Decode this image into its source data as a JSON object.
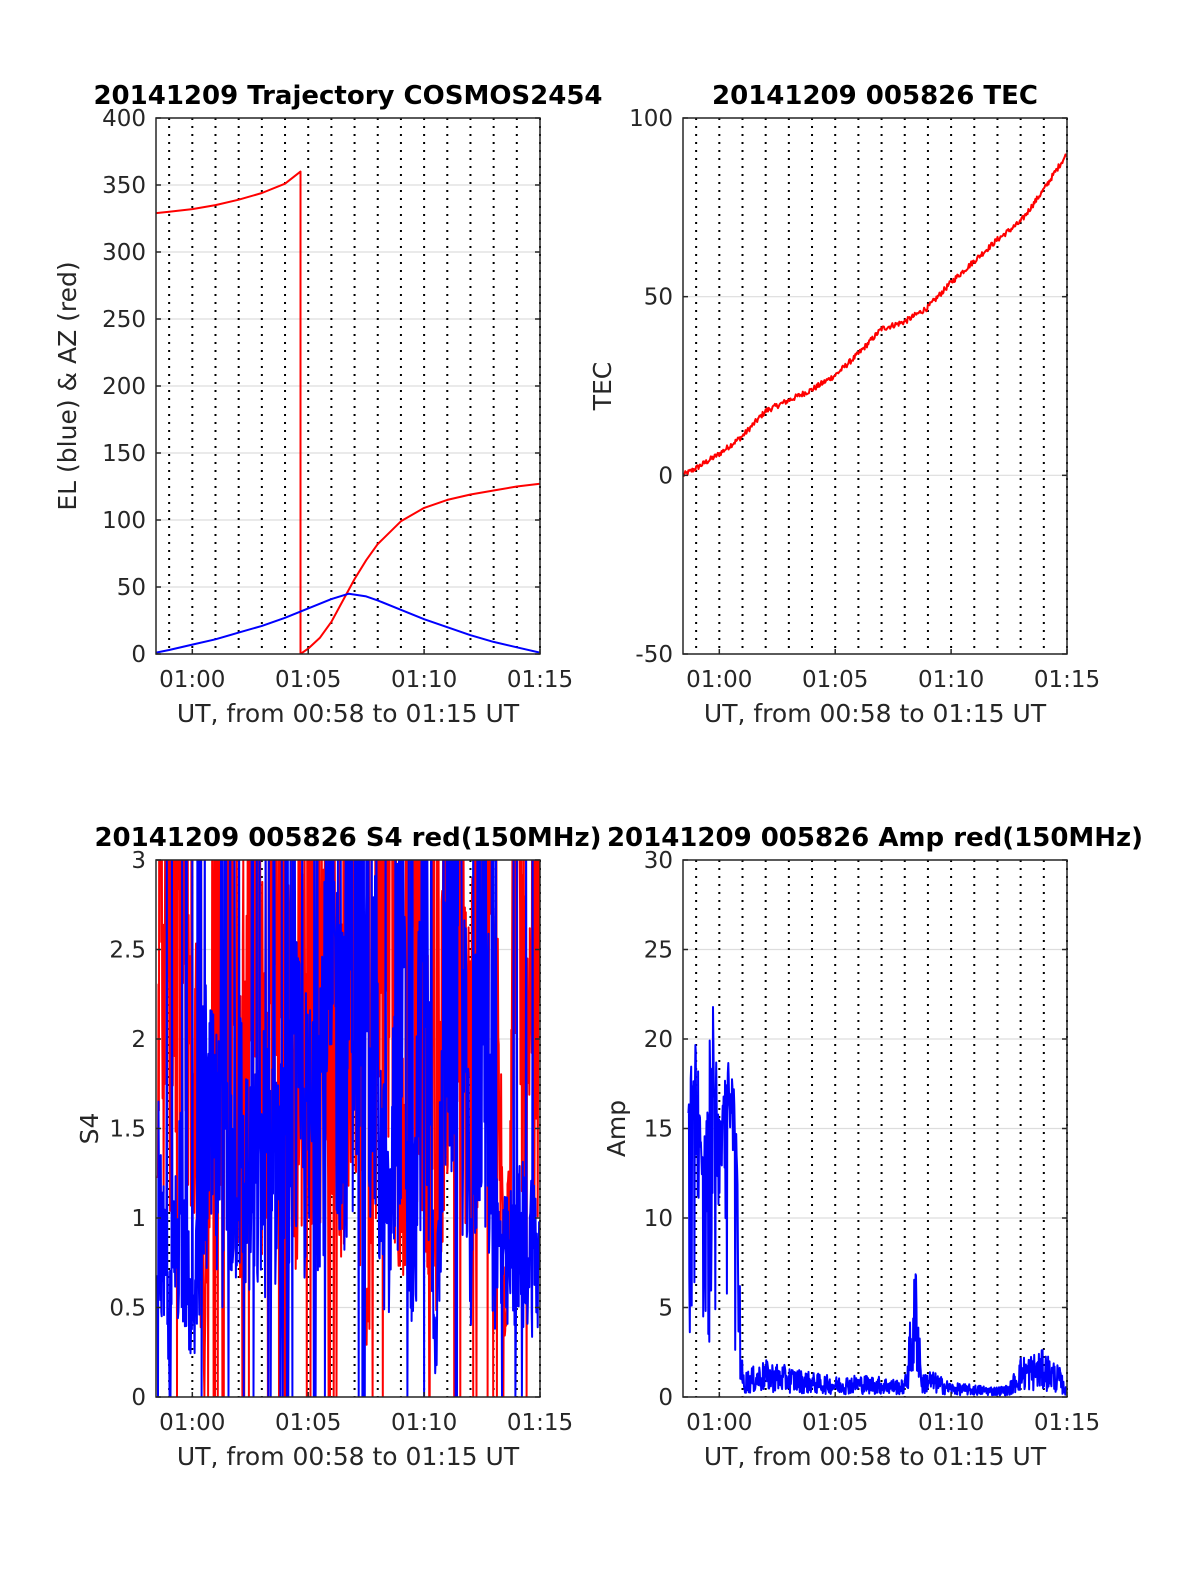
{
  "chart_data": [
    {
      "type": "line",
      "title": "20141209 Trajectory COSMOS2454",
      "xlabel": "UT, from 00:58 to 01:15 UT",
      "ylabel": "EL (blue) & AZ (red)",
      "xlim": [
        "00:58:26",
        "01:15:00"
      ],
      "ylim": [
        0,
        400
      ],
      "x_ticks": [
        "01:00",
        "01:05",
        "01:10",
        "01:15"
      ],
      "y_ticks": [
        0,
        50,
        100,
        150,
        200,
        250,
        300,
        350,
        400
      ],
      "grid": true,
      "series": [
        {
          "color": "#ff0000",
          "x": [
            "00:58:26",
            "00:59:00",
            "01:00:00",
            "01:01:00",
            "01:02:00",
            "01:03:00",
            "01:04:00",
            "01:04:40",
            "01:04:40",
            "01:05:00",
            "01:05:30",
            "01:06:00",
            "01:06:30",
            "01:07:00",
            "01:07:30",
            "01:08:00",
            "01:09:00",
            "01:10:00",
            "01:11:00",
            "01:12:00",
            "01:13:00",
            "01:14:00",
            "01:15:00"
          ],
          "values": [
            329,
            330,
            332,
            335,
            339,
            344,
            351,
            360,
            0,
            4,
            12,
            24,
            40,
            56,
            70,
            82,
            99,
            109,
            115,
            119,
            122,
            125,
            127
          ]
        },
        {
          "color": "#0000ff",
          "x": [
            "00:58:26",
            "00:59:00",
            "01:00:00",
            "01:01:00",
            "01:02:00",
            "01:03:00",
            "01:04:00",
            "01:05:00",
            "01:06:00",
            "01:06:45",
            "01:07:30",
            "01:08:00",
            "01:09:00",
            "01:10:00",
            "01:11:00",
            "01:12:00",
            "01:13:00",
            "01:14:00",
            "01:15:00"
          ],
          "values": [
            1,
            3,
            7,
            11,
            16,
            21,
            27,
            34,
            41,
            45,
            43,
            40,
            33,
            26,
            20,
            14,
            9,
            5,
            1
          ]
        }
      ]
    },
    {
      "type": "line",
      "title": "20141209 005826 TEC",
      "xlabel": "UT, from 00:58 to 01:15 UT",
      "ylabel": "TEC",
      "xlim": [
        "00:58:26",
        "01:15:00"
      ],
      "ylim": [
        -50,
        100
      ],
      "x_ticks": [
        "01:00",
        "01:05",
        "01:10",
        "01:15"
      ],
      "y_ticks": [
        -50,
        0,
        50,
        100
      ],
      "grid": true,
      "series": [
        {
          "color": "#ff0000",
          "x": [
            "00:58:26",
            "00:59:00",
            "01:00:00",
            "01:01:00",
            "01:02:00",
            "01:03:00",
            "01:04:00",
            "01:05:00",
            "01:06:00",
            "01:07:00",
            "01:08:00",
            "01:09:00",
            "01:10:00",
            "01:11:00",
            "01:12:00",
            "01:13:00",
            "01:14:00",
            "01:15:00"
          ],
          "values": [
            0,
            2,
            6,
            11,
            18,
            21,
            24,
            28,
            34,
            41,
            43,
            47,
            54,
            60,
            66,
            71,
            80,
            90
          ]
        }
      ]
    },
    {
      "type": "line",
      "title": "20141209 005826 S4 red(150MHz)",
      "xlabel": "UT, from 00:58 to 01:15 UT",
      "ylabel": "S4",
      "xlim": [
        "00:58:26",
        "01:15:00"
      ],
      "ylim": [
        0,
        3
      ],
      "x_ticks": [
        "01:00",
        "01:05",
        "01:10",
        "01:15"
      ],
      "y_ticks": [
        0,
        0.5,
        1,
        1.5,
        2,
        2.5,
        3
      ],
      "grid": true,
      "series": [
        {
          "color": "#ff0000",
          "x": [
            "00:58:30",
            "00:59:00",
            "00:59:30",
            "01:00:00",
            "01:00:30",
            "01:01:00",
            "01:01:30",
            "01:02:00",
            "01:02:30",
            "01:03:00",
            "01:03:30",
            "01:04:00",
            "01:04:30",
            "01:05:00",
            "01:05:30",
            "01:06:00",
            "01:06:30",
            "01:07:00",
            "01:07:30",
            "01:08:00",
            "01:08:30",
            "01:09:00",
            "01:09:30",
            "01:10:00",
            "01:10:30",
            "01:11:00",
            "01:11:30",
            "01:12:00",
            "01:12:30",
            "01:13:00",
            "01:13:30",
            "01:14:00",
            "01:14:30",
            "01:15:00"
          ],
          "values": [
            2.9,
            2.4,
            3.0,
            2.2,
            0.4,
            2.8,
            2.6,
            1.4,
            2.9,
            1.8,
            2.7,
            2.2,
            1.5,
            2.5,
            2.0,
            2.8,
            1.6,
            2.9,
            0.3,
            2.4,
            3.0,
            1.2,
            2.8,
            2.2,
            0.8,
            2.9,
            2.5,
            1.8,
            3.0,
            2.4,
            0.6,
            2.9,
            1.5,
            2.7
          ]
        },
        {
          "color": "#0000ff",
          "x": [
            "00:58:30",
            "00:59:00",
            "00:59:30",
            "01:00:00",
            "01:00:30",
            "01:01:00",
            "01:01:30",
            "01:02:00",
            "01:02:30",
            "01:03:00",
            "01:03:30",
            "01:04:00",
            "01:04:30",
            "01:05:00",
            "01:05:30",
            "01:06:00",
            "01:06:30",
            "01:07:00",
            "01:07:30",
            "01:08:00",
            "01:08:30",
            "01:09:00",
            "01:09:30",
            "01:10:00",
            "01:10:30",
            "01:11:00",
            "01:11:30",
            "01:12:00",
            "01:12:30",
            "01:13:00",
            "01:13:30",
            "01:14:00",
            "01:14:30",
            "01:15:00"
          ],
          "values": [
            1.1,
            0.4,
            1.2,
            0.3,
            1.5,
            1.3,
            1.2,
            1.5,
            1.1,
            1.3,
            1.4,
            1.2,
            1.6,
            1.4,
            1.8,
            2.3,
            1.9,
            2.6,
            2.9,
            1.5,
            0.8,
            2.5,
            0.5,
            2.8,
            0.2,
            2.6,
            2.9,
            0.8,
            2.7,
            0.9,
            0.7,
            0.8,
            0.9,
            0.7
          ]
        }
      ]
    },
    {
      "type": "line",
      "title": "20141209 005826 Amp red(150MHz)",
      "xlabel": "UT, from 00:58 to 01:15 UT",
      "ylabel": "Amp",
      "xlim": [
        "00:58:26",
        "01:15:00"
      ],
      "ylim": [
        0,
        30
      ],
      "x_ticks": [
        "01:00",
        "01:05",
        "01:10",
        "01:15"
      ],
      "y_ticks": [
        0,
        5,
        10,
        15,
        20,
        25,
        30
      ],
      "grid": true,
      "series": [
        {
          "color": "#0000ff",
          "x": [
            "00:58:40",
            "00:59:00",
            "00:59:20",
            "00:59:40",
            "01:00:00",
            "01:00:20",
            "01:00:40",
            "01:01:00",
            "01:02:00",
            "01:03:00",
            "01:04:00",
            "01:05:00",
            "01:06:00",
            "01:07:00",
            "01:08:00",
            "01:08:30",
            "01:08:45",
            "01:09:00",
            "01:10:00",
            "01:11:00",
            "01:12:00",
            "01:12:30",
            "01:13:00",
            "01:14:00",
            "01:14:40",
            "01:15:00"
          ],
          "values": [
            17,
            19,
            12,
            20,
            15,
            18,
            17,
            1.2,
            1.8,
            1.5,
            1.2,
            1.0,
            1.1,
            1.0,
            0.8,
            7.2,
            1.0,
            1.4,
            0.7,
            0.6,
            0.5,
            0.6,
            2.0,
            2.3,
            1.5,
            0.3
          ]
        }
      ]
    }
  ]
}
